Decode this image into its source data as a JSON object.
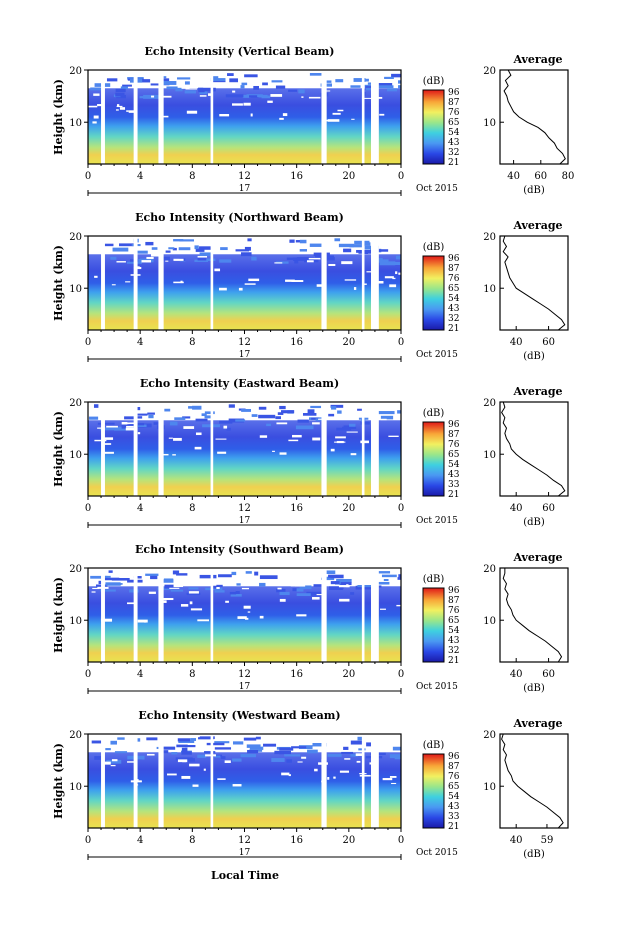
{
  "figure": {
    "xlabel": "Local Time",
    "date_label": "Oct 2015",
    "day_label": "17",
    "avg_title": "Average",
    "avg_xlabel": "(dB)",
    "cbar_label": "(dB)"
  },
  "chart_data": [
    {
      "type": "heatmap",
      "title": "Echo Intensity (Vertical Beam)",
      "ylabel": "Height (km)",
      "xlabel": "Local Time",
      "x_ticks": [
        "0",
        "4",
        "8",
        "12",
        "16",
        "20",
        "0"
      ],
      "y_ticks": [
        "10",
        "20"
      ],
      "xlim": [
        0,
        24
      ],
      "ylim": [
        2,
        20
      ],
      "colorbar": {
        "label": "(dB)",
        "ticks": [
          "96",
          "87",
          "76",
          "65",
          "54",
          "43",
          "32",
          "21"
        ]
      },
      "data_gaps_hours": [
        [
          1.0,
          1.3
        ],
        [
          3.5,
          3.8
        ],
        [
          5.4,
          5.8
        ],
        [
          9.4,
          9.6
        ],
        [
          17.9,
          18.3
        ],
        [
          21.0,
          21.2
        ],
        [
          21.7,
          22.3
        ]
      ],
      "average_profile": {
        "title": "Average",
        "xlabel": "(dB)",
        "x_ticks": [
          "40",
          "60",
          "80"
        ],
        "xlim": [
          30,
          80
        ],
        "height_km": [
          2,
          3,
          4,
          5,
          6,
          7,
          8,
          9,
          10,
          11,
          12,
          13,
          14,
          15,
          16,
          17,
          18,
          19,
          20
        ],
        "db": [
          74,
          78,
          76,
          72,
          70,
          66,
          63,
          58,
          50,
          44,
          40,
          38,
          36,
          35,
          33,
          36,
          34,
          38,
          36
        ]
      }
    },
    {
      "type": "heatmap",
      "title": "Echo Intensity (Northward Beam)",
      "ylabel": "Height (km)",
      "xlabel": "Local Time",
      "x_ticks": [
        "0",
        "4",
        "8",
        "12",
        "16",
        "20",
        "0"
      ],
      "y_ticks": [
        "10",
        "20"
      ],
      "xlim": [
        0,
        24
      ],
      "ylim": [
        2,
        20
      ],
      "colorbar": {
        "label": "(dB)",
        "ticks": [
          "96",
          "87",
          "76",
          "65",
          "54",
          "43",
          "32",
          "21"
        ]
      },
      "data_gaps_hours": [
        [
          1.0,
          1.3
        ],
        [
          3.5,
          3.8
        ],
        [
          5.4,
          5.8
        ],
        [
          9.4,
          9.6
        ],
        [
          17.9,
          18.3
        ],
        [
          21.0,
          21.2
        ],
        [
          21.7,
          22.3
        ]
      ],
      "average_profile": {
        "title": "Average",
        "xlabel": "(dB)",
        "x_ticks": [
          "40",
          "60"
        ],
        "xlim": [
          30,
          72
        ],
        "height_km": [
          2,
          3,
          4,
          5,
          6,
          7,
          8,
          9,
          10,
          11,
          12,
          13,
          14,
          15,
          16,
          17,
          18,
          19,
          20
        ],
        "db": [
          66,
          70,
          68,
          64,
          60,
          55,
          50,
          45,
          40,
          38,
          36,
          35,
          34,
          33,
          35,
          32,
          34,
          32,
          33
        ]
      }
    },
    {
      "type": "heatmap",
      "title": "Echo Intensity (Eastward Beam)",
      "ylabel": "Height (km)",
      "xlabel": "Local Time",
      "x_ticks": [
        "0",
        "4",
        "8",
        "12",
        "16",
        "20",
        "0"
      ],
      "y_ticks": [
        "10",
        "20"
      ],
      "xlim": [
        0,
        24
      ],
      "ylim": [
        2,
        20
      ],
      "colorbar": {
        "label": "(dB)",
        "ticks": [
          "96",
          "87",
          "76",
          "65",
          "54",
          "43",
          "33",
          "21"
        ]
      },
      "data_gaps_hours": [
        [
          1.0,
          1.3
        ],
        [
          3.5,
          3.8
        ],
        [
          5.4,
          5.8
        ],
        [
          9.4,
          9.6
        ],
        [
          17.9,
          18.3
        ],
        [
          21.0,
          21.2
        ],
        [
          21.7,
          22.3
        ]
      ],
      "average_profile": {
        "title": "Average",
        "xlabel": "(dB)",
        "x_ticks": [
          "40",
          "60"
        ],
        "xlim": [
          30,
          72
        ],
        "height_km": [
          2,
          3,
          4,
          5,
          6,
          7,
          8,
          9,
          10,
          11,
          12,
          13,
          14,
          15,
          16,
          17,
          18,
          19,
          20
        ],
        "db": [
          66,
          70,
          68,
          63,
          59,
          54,
          49,
          44,
          40,
          37,
          36,
          34,
          33,
          34,
          32,
          33,
          31,
          33,
          32
        ]
      }
    },
    {
      "type": "heatmap",
      "title": "Echo Intensity (Southward Beam)",
      "ylabel": "Height (km)",
      "xlabel": "Local Time",
      "x_ticks": [
        "0",
        "4",
        "8",
        "12",
        "16",
        "20",
        "0"
      ],
      "y_ticks": [
        "10",
        "20"
      ],
      "xlim": [
        0,
        24
      ],
      "ylim": [
        2,
        20
      ],
      "colorbar": {
        "label": "(dB)",
        "ticks": [
          "96",
          "87",
          "76",
          "65",
          "54",
          "43",
          "32",
          "21"
        ]
      },
      "data_gaps_hours": [
        [
          1.0,
          1.3
        ],
        [
          3.5,
          3.8
        ],
        [
          5.4,
          5.8
        ],
        [
          9.4,
          9.6
        ],
        [
          17.9,
          18.3
        ],
        [
          21.0,
          21.2
        ],
        [
          21.7,
          22.3
        ]
      ],
      "average_profile": {
        "title": "Average",
        "xlabel": "(dB)",
        "x_ticks": [
          "40",
          "60"
        ],
        "xlim": [
          30,
          72
        ],
        "height_km": [
          2,
          3,
          4,
          5,
          6,
          7,
          8,
          9,
          10,
          11,
          12,
          13,
          14,
          15,
          16,
          17,
          18,
          19,
          20
        ],
        "db": [
          66,
          68,
          66,
          62,
          58,
          53,
          48,
          44,
          40,
          38,
          37,
          35,
          34,
          35,
          33,
          34,
          32,
          33,
          33
        ]
      }
    },
    {
      "type": "heatmap",
      "title": "Echo Intensity (Westward Beam)",
      "ylabel": "Height (km)",
      "xlabel": "Local Time",
      "x_ticks": [
        "0",
        "4",
        "8",
        "12",
        "16",
        "20",
        "0"
      ],
      "y_ticks": [
        "10",
        "20"
      ],
      "xlim": [
        0,
        24
      ],
      "ylim": [
        2,
        20
      ],
      "colorbar": {
        "label": "(dB)",
        "ticks": [
          "96",
          "87",
          "76",
          "65",
          "54",
          "43",
          "33",
          "21"
        ]
      },
      "data_gaps_hours": [
        [
          1.0,
          1.3
        ],
        [
          3.5,
          3.8
        ],
        [
          5.4,
          5.8
        ],
        [
          9.4,
          9.6
        ],
        [
          17.9,
          18.3
        ],
        [
          21.0,
          21.2
        ],
        [
          21.7,
          22.3
        ]
      ],
      "average_profile": {
        "title": "Average",
        "xlabel": "(dB)",
        "x_ticks": [
          "40",
          "59"
        ],
        "xlim": [
          30,
          72
        ],
        "height_km": [
          2,
          3,
          4,
          5,
          6,
          7,
          8,
          9,
          10,
          11,
          12,
          13,
          14,
          15,
          16,
          17,
          18,
          19,
          20
        ],
        "db": [
          66,
          69,
          67,
          63,
          59,
          54,
          49,
          45,
          41,
          38,
          37,
          35,
          34,
          33,
          34,
          32,
          33,
          31,
          32
        ]
      }
    }
  ]
}
